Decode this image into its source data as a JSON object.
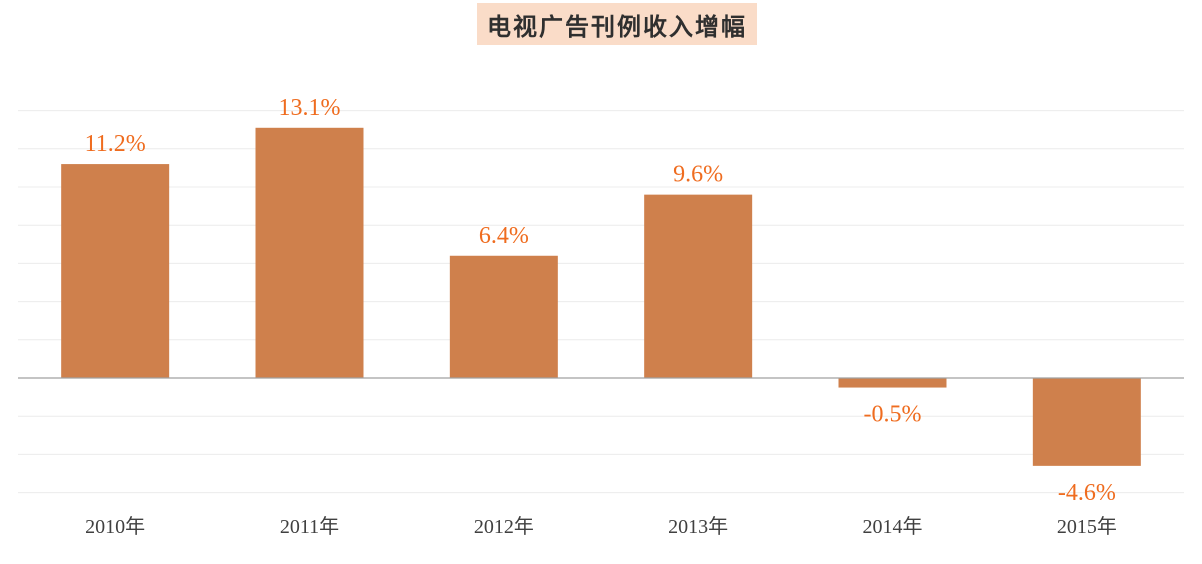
{
  "chart_data": {
    "type": "bar",
    "title": "电视广告刊例收入增幅",
    "categories": [
      "2010年",
      "2011年",
      "2012年",
      "2013年",
      "2014年",
      "2015年"
    ],
    "values": [
      11.2,
      13.1,
      6.4,
      9.6,
      -0.5,
      -4.6
    ],
    "value_labels": [
      "11.2%",
      "13.1%",
      "6.4%",
      "9.6%",
      "-0.5%",
      "-4.6%"
    ],
    "xlabel": "",
    "ylabel": "",
    "ylim": [
      -6,
      14
    ],
    "grid": true,
    "legend": "none"
  },
  "colors": {
    "bar": "#cf804c",
    "data_label": "#ef6c1f",
    "grid": "#ececec",
    "axis": "#a0a0a0",
    "tick_label": "#404040",
    "title_bg": "#fadcc8"
  }
}
